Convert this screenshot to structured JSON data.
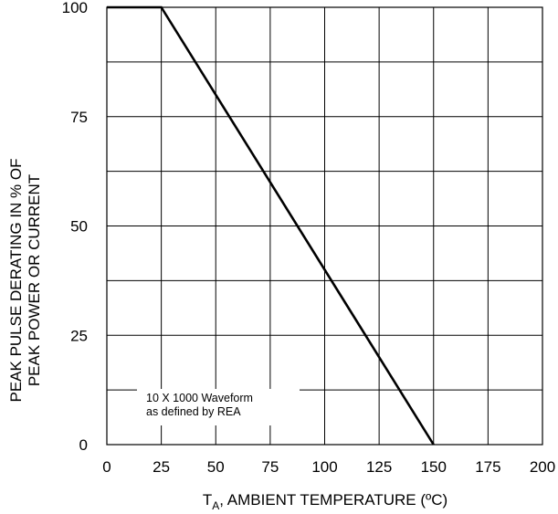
{
  "chart_data": {
    "type": "line",
    "title": "",
    "xlabel_main": "T",
    "xlabel_sub": "A",
    "xlabel_rest": ", AMBIENT TEMPERATURE (ºC)",
    "ylabel_line1": "PEAK PULSE DERATING IN % OF",
    "ylabel_line2": "PEAK POWER OR CURRENT",
    "xlim": [
      0,
      200
    ],
    "ylim": [
      0,
      100
    ],
    "x_ticks": [
      "0",
      "25",
      "50",
      "75",
      "100",
      "125",
      "150",
      "175",
      "200"
    ],
    "y_ticks": [
      "0",
      "25",
      "50",
      "75",
      "100"
    ],
    "grid": true,
    "series": [
      {
        "x": [
          0,
          25,
          150
        ],
        "y": [
          100,
          100,
          0
        ]
      }
    ],
    "annotation_line1": "10 X 1000 Waveform",
    "annotation_line2": "as defined by REA",
    "line_color": "#000000"
  }
}
